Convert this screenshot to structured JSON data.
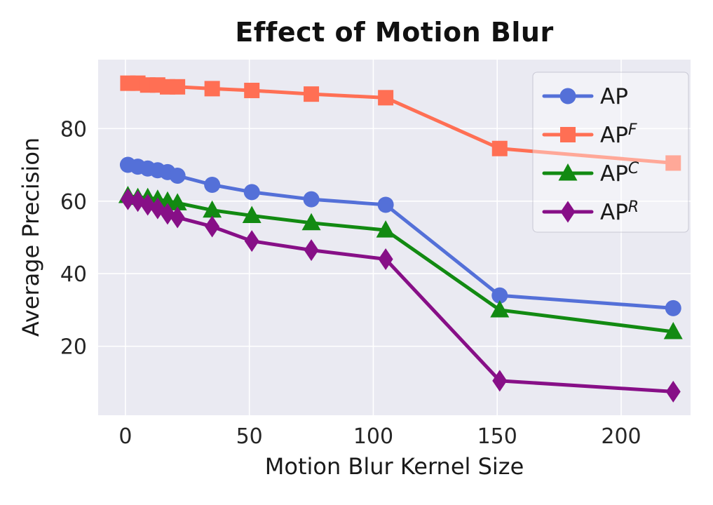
{
  "chart_data": {
    "type": "line",
    "title": "Effect of Motion Blur",
    "xlabel": "Motion Blur Kernel Size",
    "ylabel": "Average Precision",
    "x": [
      1,
      5,
      9,
      13,
      17,
      21,
      35,
      51,
      75,
      105,
      151,
      221
    ],
    "series": [
      {
        "name": "AP",
        "label_base": "AP",
        "label_sup": "",
        "color": "#5470d8",
        "marker": "circle",
        "values": [
          70,
          69.5,
          69,
          68.5,
          68,
          67,
          64.5,
          62.5,
          60.5,
          59,
          34,
          30.5
        ]
      },
      {
        "name": "AP-F",
        "label_base": "AP",
        "label_sup": "F",
        "color": "#ff6f54",
        "marker": "square",
        "values": [
          92.5,
          92.5,
          92,
          92,
          91.5,
          91.5,
          91,
          90.5,
          89.5,
          88.5,
          74.5,
          70.5
        ]
      },
      {
        "name": "AP-C",
        "label_base": "AP",
        "label_sup": "C",
        "color": "#128a12",
        "marker": "triangle",
        "values": [
          61.5,
          61,
          61,
          60.5,
          60,
          59.5,
          57.5,
          56,
          54,
          52,
          30,
          24
        ]
      },
      {
        "name": "AP-R",
        "label_base": "AP",
        "label_sup": "R",
        "color": "#870f87",
        "marker": "diamond",
        "values": [
          60.5,
          60,
          59,
          58,
          56.5,
          55.5,
          53,
          49,
          46.5,
          44,
          10.5,
          7.5
        ]
      }
    ],
    "xticks": [
      0,
      50,
      100,
      150,
      200
    ],
    "yticks": [
      20,
      40,
      60,
      80
    ],
    "xlim": [
      -11,
      228
    ],
    "ylim": [
      1,
      99
    ],
    "grid": true,
    "legend_position": "upper right",
    "plot_bg": "#eaeaf2",
    "grid_color": "#ffffff",
    "tick_color": "#262626",
    "label_color": "#1a1a1a"
  }
}
